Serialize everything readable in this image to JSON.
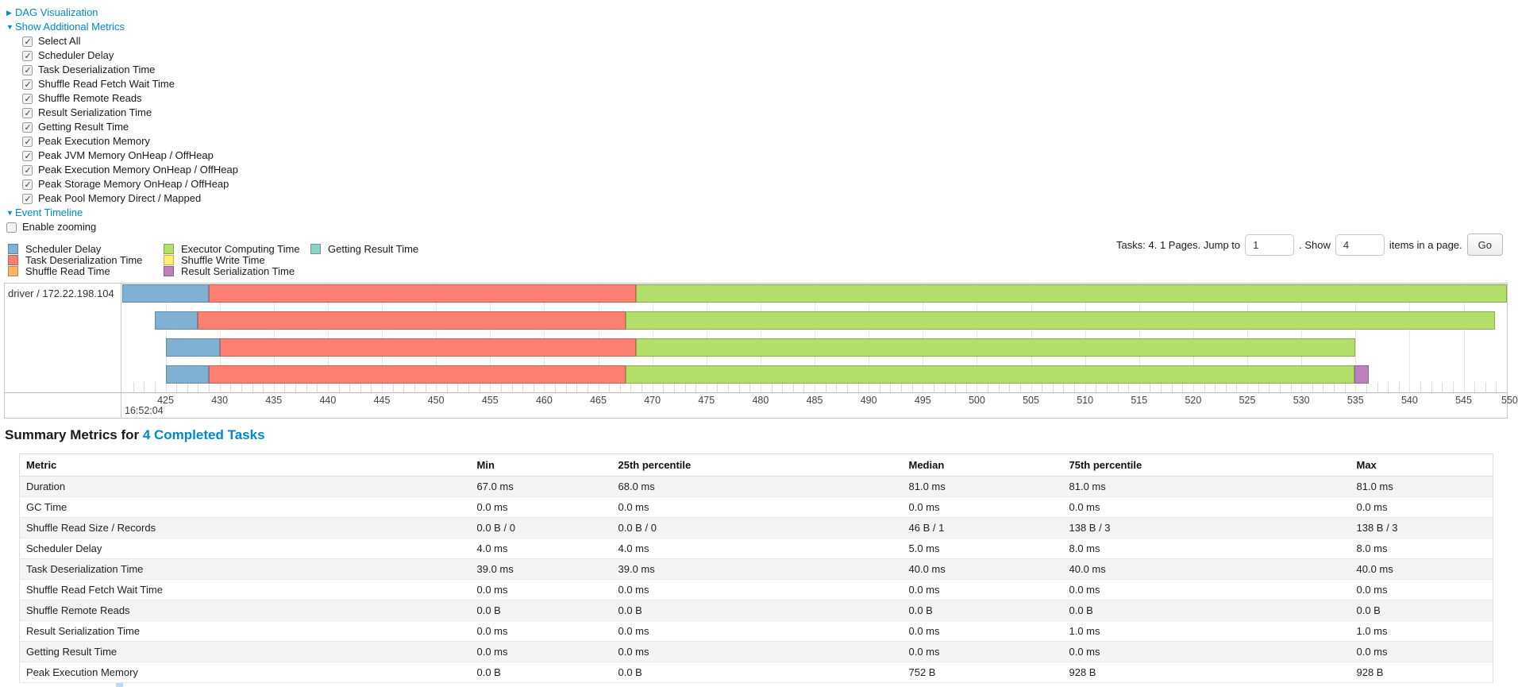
{
  "toggles": {
    "dag": {
      "label": "DAG Visualization",
      "state": "collapsed"
    },
    "metrics": {
      "label": "Show Additional Metrics",
      "state": "expanded"
    },
    "timeline": {
      "label": "Event Timeline",
      "state": "expanded"
    }
  },
  "metric_checkboxes": [
    {
      "label": "Select All",
      "checked": true
    },
    {
      "label": "Scheduler Delay",
      "checked": true
    },
    {
      "label": "Task Deserialization Time",
      "checked": true
    },
    {
      "label": "Shuffle Read Fetch Wait Time",
      "checked": true
    },
    {
      "label": "Shuffle Remote Reads",
      "checked": true
    },
    {
      "label": "Result Serialization Time",
      "checked": true
    },
    {
      "label": "Getting Result Time",
      "checked": true
    },
    {
      "label": "Peak Execution Memory",
      "checked": true
    },
    {
      "label": "Peak JVM Memory OnHeap / OffHeap",
      "checked": true
    },
    {
      "label": "Peak Execution Memory OnHeap / OffHeap",
      "checked": true
    },
    {
      "label": "Peak Storage Memory OnHeap / OffHeap",
      "checked": true
    },
    {
      "label": "Peak Pool Memory Direct / Mapped",
      "checked": true
    }
  ],
  "enable_zooming": {
    "label": "Enable zooming",
    "checked": false
  },
  "legend": {
    "columns": [
      [
        {
          "label": "Scheduler Delay",
          "color": "#80B1D3"
        },
        {
          "label": "Task Deserialization Time",
          "color": "#FB8072"
        },
        {
          "label": "Shuffle Read Time",
          "color": "#FDB462"
        }
      ],
      [
        {
          "label": "Executor Computing Time",
          "color": "#B3DE69"
        },
        {
          "label": "Shuffle Write Time",
          "color": "#FFED6F"
        },
        {
          "label": "Result Serialization Time",
          "color": "#BC80BD"
        }
      ],
      [
        {
          "label": "Getting Result Time",
          "color": "#8DD3C7"
        }
      ]
    ]
  },
  "pagination": {
    "prefix_text": "Tasks: 4. 1 Pages. Jump to",
    "jump_value": "1",
    "show_text": ". Show",
    "show_value": "4",
    "suffix_text": "items in a page.",
    "go_label": "Go"
  },
  "chart_data": {
    "type": "timeline",
    "group_label": "driver / 172.22.198.104",
    "axis": {
      "unit": "ms within second",
      "domain_start": 421,
      "domain_end": 549,
      "major_label": "16:52:04",
      "minor_tick_interval": 1,
      "labeled_tick_interval": 5,
      "first_labeled_tick": 425,
      "last_labeled_tick": 545,
      "clipped_tick_label": "550"
    },
    "colors": {
      "scheduler": "#80B1D3",
      "deserialization": "#FB8072",
      "shuffle_read": "#FDB462",
      "compute": "#B3DE69",
      "shuffle_write": "#FFED6F",
      "result_serialization": "#BC80BD",
      "getting_result": "#8DD3C7"
    },
    "tasks": [
      {
        "segments": [
          {
            "type": "scheduler",
            "start": 421,
            "end": 429
          },
          {
            "type": "deserialization",
            "start": 429,
            "end": 468.5
          },
          {
            "type": "compute",
            "start": 468.5,
            "end": 549
          }
        ]
      },
      {
        "segments": [
          {
            "type": "scheduler",
            "start": 424,
            "end": 428
          },
          {
            "type": "deserialization",
            "start": 428,
            "end": 467.5
          },
          {
            "type": "compute",
            "start": 467.5,
            "end": 547.9
          }
        ]
      },
      {
        "segments": [
          {
            "type": "scheduler",
            "start": 425,
            "end": 430
          },
          {
            "type": "deserialization",
            "start": 430,
            "end": 468.5
          },
          {
            "type": "compute",
            "start": 468.5,
            "end": 535
          }
        ]
      },
      {
        "segments": [
          {
            "type": "scheduler",
            "start": 425,
            "end": 429
          },
          {
            "type": "deserialization",
            "start": 429,
            "end": 467.5
          },
          {
            "type": "compute",
            "start": 467.5,
            "end": 534.9
          },
          {
            "type": "result_serialization",
            "start": 534.9,
            "end": 536.2
          }
        ]
      }
    ]
  },
  "summary": {
    "title_prefix": "Summary Metrics for ",
    "title_link": "4 Completed Tasks",
    "table": {
      "headers": [
        "Metric",
        "Min",
        "25th percentile",
        "Median",
        "75th percentile",
        "Max"
      ],
      "rows": [
        {
          "metric": "Duration",
          "values": [
            "67.0 ms",
            "68.0 ms",
            "81.0 ms",
            "81.0 ms",
            "81.0 ms"
          ]
        },
        {
          "metric": "GC Time",
          "values": [
            "0.0 ms",
            "0.0 ms",
            "0.0 ms",
            "0.0 ms",
            "0.0 ms"
          ]
        },
        {
          "metric": "Shuffle Read Size / Records",
          "values": [
            "0.0 B / 0",
            "0.0 B / 0",
            "46 B / 1",
            "138 B / 3",
            "138 B / 3"
          ]
        },
        {
          "metric": "Scheduler Delay",
          "values": [
            "4.0 ms",
            "4.0 ms",
            "5.0 ms",
            "8.0 ms",
            "8.0 ms"
          ]
        },
        {
          "metric": "Task Deserialization Time",
          "values": [
            "39.0 ms",
            "39.0 ms",
            "40.0 ms",
            "40.0 ms",
            "40.0 ms"
          ]
        },
        {
          "metric": "Shuffle Read Fetch Wait Time",
          "values": [
            "0.0 ms",
            "0.0 ms",
            "0.0 ms",
            "0.0 ms",
            "0.0 ms"
          ]
        },
        {
          "metric": "Shuffle Remote Reads",
          "values": [
            "0.0 B",
            "0.0 B",
            "0.0 B",
            "0.0 B",
            "0.0 B"
          ]
        },
        {
          "metric": "Result Serialization Time",
          "values": [
            "0.0 ms",
            "0.0 ms",
            "0.0 ms",
            "1.0 ms",
            "1.0 ms"
          ]
        },
        {
          "metric": "Getting Result Time",
          "values": [
            "0.0 ms",
            "0.0 ms",
            "0.0 ms",
            "0.0 ms",
            "0.0 ms"
          ]
        },
        {
          "metric": "Peak Execution Memory",
          "values": [
            "0.0 B",
            "0.0 B",
            "752 B",
            "928 B",
            "928 B"
          ]
        }
      ]
    }
  }
}
